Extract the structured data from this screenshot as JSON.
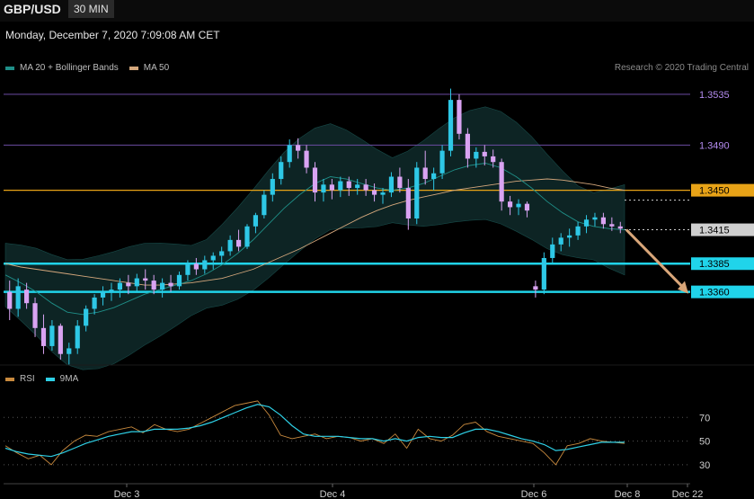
{
  "header": {
    "symbol": "GBP/USD",
    "timeframe": "30 MIN"
  },
  "datetime": "Monday, December 7, 2020 7:09:08 AM CET",
  "legend_main": [
    {
      "label": "MA 20 + Bollinger Bands",
      "color": "#1f8f88"
    },
    {
      "label": "MA 50",
      "color": "#d4a77c"
    }
  ],
  "legend_rsi": [
    {
      "label": "RSI",
      "color": "#c98a3e"
    },
    {
      "label": "9MA",
      "color": "#2ed0e6"
    }
  ],
  "credit": "Research © 2020 Trading Central",
  "chart_data": [
    {
      "type": "candlestick",
      "ylim": [
        1.33,
        1.355
      ],
      "levels": [
        {
          "label": "1.3535",
          "value": 1.3535,
          "style": "thin",
          "color": "#6b4ba3",
          "label_color": "#b48cf0",
          "box": false
        },
        {
          "label": "1.3490",
          "value": 1.349,
          "style": "thin",
          "color": "#6b4ba3",
          "label_color": "#b48cf0",
          "box": false
        },
        {
          "label": "1.3450",
          "value": 1.345,
          "style": "resistance",
          "color": "#e8a317",
          "label_color": "#000000",
          "box": true
        },
        {
          "label": "1.3415",
          "value": 1.3415,
          "style": "current",
          "color": "#cfcfcf",
          "label_color": "#000000",
          "box": true
        },
        {
          "label": "1.3385",
          "value": 1.3385,
          "style": "support",
          "color": "#20d4ea",
          "label_color": "#000000",
          "box": true
        },
        {
          "label": "1.3360",
          "value": 1.336,
          "style": "support",
          "color": "#20d4ea",
          "label_color": "#000000",
          "box": true
        }
      ],
      "target_arrow": {
        "from": 1.3415,
        "to": 1.336,
        "color": "#d9a679"
      },
      "candles": [
        [
          1.336,
          1.337,
          1.3335,
          1.3345
        ],
        [
          1.3345,
          1.3372,
          1.3338,
          1.3365
        ],
        [
          1.3362,
          1.3368,
          1.3345,
          1.335
        ],
        [
          1.335,
          1.3355,
          1.332,
          1.3328
        ],
        [
          1.3328,
          1.334,
          1.3305,
          1.3312
        ],
        [
          1.3312,
          1.3335,
          1.3308,
          1.333
        ],
        [
          1.333,
          1.3332,
          1.33,
          1.3305
        ],
        [
          1.3305,
          1.3315,
          1.3295,
          1.331
        ],
        [
          1.331,
          1.3335,
          1.3305,
          1.333
        ],
        [
          1.333,
          1.3348,
          1.3325,
          1.3345
        ],
        [
          1.3345,
          1.3358,
          1.334,
          1.3355
        ],
        [
          1.3355,
          1.3365,
          1.3348,
          1.336
        ],
        [
          1.336,
          1.3368,
          1.3352,
          1.3362
        ],
        [
          1.3362,
          1.3372,
          1.3355,
          1.3368
        ],
        [
          1.3368,
          1.3375,
          1.3358,
          1.3365
        ],
        [
          1.3365,
          1.3376,
          1.336,
          1.3372
        ],
        [
          1.3372,
          1.338,
          1.3362,
          1.337
        ],
        [
          1.337,
          1.3375,
          1.3358,
          1.3362
        ],
        [
          1.3362,
          1.3372,
          1.3355,
          1.3368
        ],
        [
          1.3368,
          1.3375,
          1.336,
          1.3365
        ],
        [
          1.3365,
          1.3378,
          1.3362,
          1.3375
        ],
        [
          1.3375,
          1.3388,
          1.337,
          1.3385
        ],
        [
          1.3385,
          1.339,
          1.3375,
          1.338
        ],
        [
          1.338,
          1.3392,
          1.3376,
          1.3388
        ],
        [
          1.3388,
          1.3395,
          1.338,
          1.3392
        ],
        [
          1.3392,
          1.34,
          1.3385,
          1.3396
        ],
        [
          1.3396,
          1.341,
          1.3392,
          1.3406
        ],
        [
          1.3406,
          1.3415,
          1.3396,
          1.34
        ],
        [
          1.34,
          1.342,
          1.3398,
          1.3418
        ],
        [
          1.3418,
          1.343,
          1.3412,
          1.3428
        ],
        [
          1.3428,
          1.345,
          1.3425,
          1.3446
        ],
        [
          1.3446,
          1.3465,
          1.344,
          1.346
        ],
        [
          1.346,
          1.348,
          1.3455,
          1.3475
        ],
        [
          1.3475,
          1.3495,
          1.347,
          1.349
        ],
        [
          1.349,
          1.3496,
          1.3478,
          1.3485
        ],
        [
          1.3485,
          1.349,
          1.3465,
          1.347
        ],
        [
          1.347,
          1.3475,
          1.344,
          1.3448
        ],
        [
          1.3448,
          1.346,
          1.344,
          1.3455
        ],
        [
          1.3455,
          1.346,
          1.3442,
          1.345
        ],
        [
          1.345,
          1.3462,
          1.3444,
          1.3458
        ],
        [
          1.3458,
          1.3462,
          1.3445,
          1.3452
        ],
        [
          1.3452,
          1.346,
          1.3446,
          1.3455
        ],
        [
          1.3455,
          1.346,
          1.3445,
          1.345
        ],
        [
          1.345,
          1.3456,
          1.344,
          1.3446
        ],
        [
          1.3446,
          1.3452,
          1.3438,
          1.3448
        ],
        [
          1.3448,
          1.3466,
          1.3444,
          1.3462
        ],
        [
          1.3462,
          1.347,
          1.3448,
          1.3452
        ],
        [
          1.3452,
          1.346,
          1.3415,
          1.3425
        ],
        [
          1.3425,
          1.3475,
          1.342,
          1.347
        ],
        [
          1.347,
          1.3485,
          1.3455,
          1.346
        ],
        [
          1.346,
          1.347,
          1.345,
          1.3465
        ],
        [
          1.3465,
          1.349,
          1.346,
          1.3485
        ],
        [
          1.3485,
          1.354,
          1.348,
          1.353
        ],
        [
          1.353,
          1.3535,
          1.3495,
          1.35
        ],
        [
          1.35,
          1.3505,
          1.347,
          1.3478
        ],
        [
          1.3478,
          1.3488,
          1.347,
          1.3484
        ],
        [
          1.3484,
          1.349,
          1.3472,
          1.348
        ],
        [
          1.348,
          1.3486,
          1.347,
          1.3475
        ],
        [
          1.3475,
          1.3478,
          1.3432,
          1.344
        ],
        [
          1.344,
          1.3445,
          1.3428,
          1.3435
        ],
        [
          1.3435,
          1.3442,
          1.3428,
          1.3438
        ],
        [
          1.3438,
          1.344,
          1.3426,
          1.3432
        ],
        [
          1.3365,
          1.337,
          1.3355,
          1.3362
        ],
        [
          1.3362,
          1.3395,
          1.3358,
          1.339
        ],
        [
          1.339,
          1.3408,
          1.3386,
          1.3402
        ],
        [
          1.3402,
          1.3412,
          1.3396,
          1.3408
        ],
        [
          1.3408,
          1.3416,
          1.34,
          1.341
        ],
        [
          1.341,
          1.3422,
          1.3406,
          1.3418
        ],
        [
          1.3418,
          1.3428,
          1.3412,
          1.3424
        ],
        [
          1.3424,
          1.343,
          1.3418,
          1.3426
        ],
        [
          1.3426,
          1.343,
          1.3416,
          1.342
        ],
        [
          1.342,
          1.3426,
          1.3414,
          1.3418
        ],
        [
          1.3418,
          1.3422,
          1.3412,
          1.3416
        ]
      ],
      "ma50": [
        1.3385,
        1.3382,
        1.338,
        1.3378,
        1.3376,
        1.3374,
        1.3372,
        1.337,
        1.3368,
        1.3366,
        1.3366,
        1.3367,
        1.3368,
        1.337,
        1.3372,
        1.3376,
        1.338,
        1.3386,
        1.3392,
        1.3398,
        1.3405,
        1.3412,
        1.3419,
        1.3426,
        1.3432,
        1.3437,
        1.3441,
        1.3444,
        1.3447,
        1.345,
        1.3452,
        1.3454,
        1.3456,
        1.3458,
        1.3459,
        1.346,
        1.3459,
        1.3457,
        1.3455,
        1.3452,
        1.345
      ],
      "ma20": [
        1.3375,
        1.3368,
        1.336,
        1.335,
        1.3342,
        1.334,
        1.3342,
        1.3346,
        1.3352,
        1.3358,
        1.3362,
        1.3366,
        1.337,
        1.3376,
        1.3384,
        1.3394,
        1.3406,
        1.342,
        1.3434,
        1.3446,
        1.3456,
        1.3462,
        1.346,
        1.3456,
        1.3452,
        1.345,
        1.3452,
        1.3456,
        1.3462,
        1.3468,
        1.3472,
        1.3474,
        1.347,
        1.3462,
        1.3452,
        1.344,
        1.343,
        1.3422,
        1.3418,
        1.3416,
        1.3415
      ]
    },
    {
      "type": "line",
      "ylim": [
        20,
        90
      ],
      "yticks": [
        70,
        50,
        30
      ],
      "xticks": [
        "Dec 3",
        "Dec 4",
        "Dec 6",
        "Dec 8",
        "Dec 22"
      ],
      "series": [
        {
          "name": "RSI",
          "values": [
            46,
            40,
            35,
            38,
            30,
            42,
            50,
            55,
            54,
            58,
            60,
            62,
            57,
            64,
            60,
            58,
            60,
            65,
            70,
            75,
            80,
            82,
            84,
            72,
            55,
            52,
            54,
            56,
            52,
            54,
            53,
            50,
            52,
            48,
            56,
            44,
            60,
            52,
            50,
            55,
            64,
            66,
            58,
            54,
            52,
            50,
            48,
            40,
            30,
            46,
            48,
            52,
            50,
            49,
            48
          ]
        },
        {
          "name": "9MA",
          "values": [
            44,
            41,
            39,
            38,
            37,
            40,
            44,
            48,
            51,
            54,
            56,
            58,
            58,
            60,
            60,
            60,
            61,
            63,
            66,
            70,
            74,
            78,
            81,
            79,
            72,
            63,
            56,
            54,
            54,
            54,
            53,
            52,
            52,
            50,
            52,
            50,
            53,
            54,
            53,
            53,
            57,
            60,
            60,
            58,
            55,
            52,
            50,
            47,
            42,
            43,
            45,
            47,
            49,
            49,
            49
          ]
        }
      ]
    }
  ]
}
